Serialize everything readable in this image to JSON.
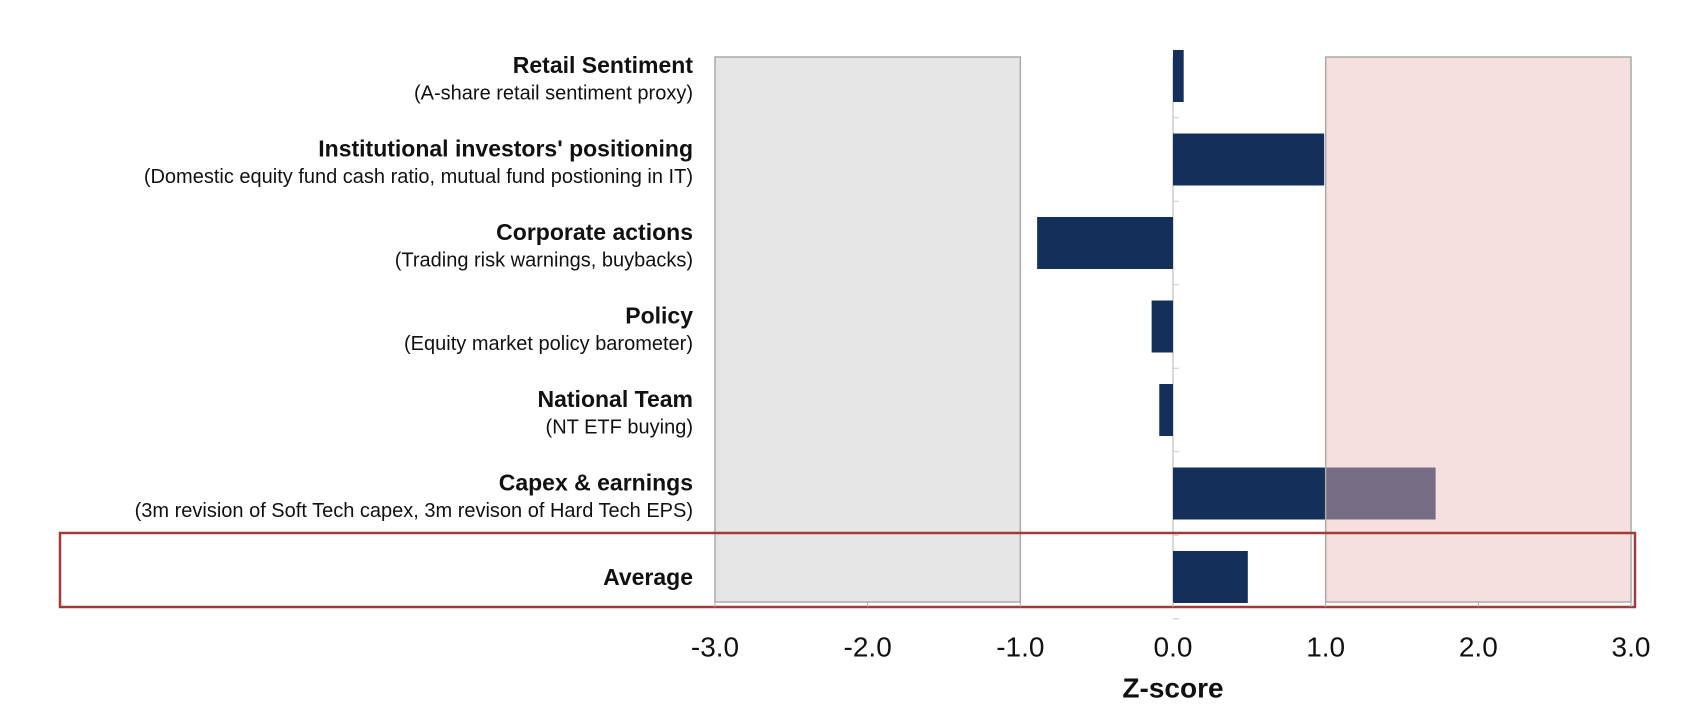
{
  "chart_data": {
    "type": "barh",
    "categories": [
      "Retail Sentiment",
      "Institutional investors' positioning",
      "Corporate actions",
      "Policy",
      "National Team",
      "Capex & earnings",
      "Average"
    ],
    "descriptions": [
      "(A-share retail sentiment proxy)",
      "(Domestic equity fund cash ratio, mutual fund postioning in IT)",
      "(Trading risk warnings, buybacks)",
      "(Equity market policy barometer)",
      "(NT ETF buying)",
      "(3m revision of Soft Tech capex, 3m revison of Hard Tech EPS)",
      null
    ],
    "values": [
      0.07,
      0.99,
      -0.89,
      -0.14,
      -0.09,
      1.72,
      0.49
    ],
    "color": "#14305a",
    "xlabel": "Z-score",
    "xlim": [
      -3,
      3
    ],
    "xticks": [
      {
        "value": -3,
        "label": "-3.0"
      },
      {
        "value": -2,
        "label": "-2.0"
      },
      {
        "value": -1,
        "label": "-1.0"
      },
      {
        "value": 0,
        "label": "0.0"
      },
      {
        "value": 1,
        "label": "1.0"
      },
      {
        "value": 2,
        "label": "2.0"
      },
      {
        "value": 3,
        "label": "3.0"
      }
    ],
    "shaded_ranges": [
      {
        "from": -3,
        "to": -1,
        "color": "#d9d9d9"
      },
      {
        "from": 1,
        "to": 3,
        "color": "#e8b9b9"
      }
    ],
    "grid": false
  }
}
